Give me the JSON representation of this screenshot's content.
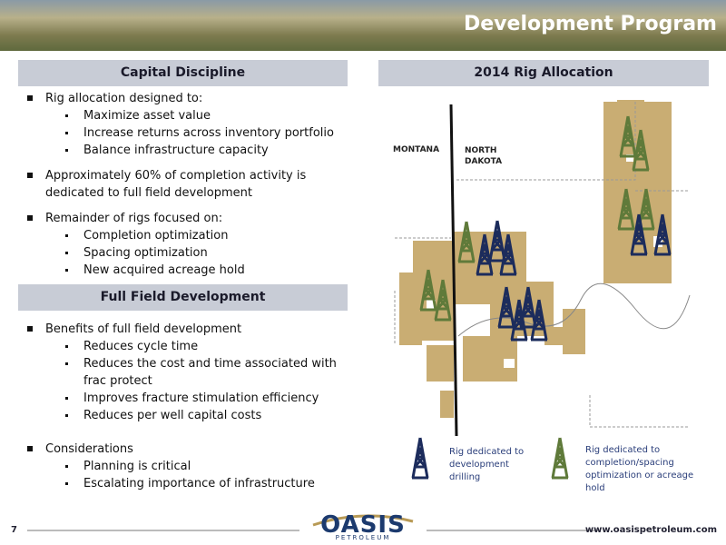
{
  "header": {
    "title": "Development Program"
  },
  "capital_discipline": {
    "heading": "Capital Discipline",
    "items": [
      {
        "text": "Rig allocation designed to:",
        "subitems": [
          "Maximize asset value",
          "Increase returns across inventory portfolio",
          "Balance infrastructure capacity"
        ]
      },
      {
        "text": "Approximately 60% of completion activity is dedicated to full field development",
        "subitems": []
      },
      {
        "text": "Remainder of rigs focused on:",
        "subitems": [
          "Completion optimization",
          "Spacing optimization",
          "New acquired acreage hold"
        ]
      }
    ]
  },
  "full_field_development": {
    "heading": "Full Field Development",
    "items": [
      {
        "text": "Benefits of full field development",
        "subitems": [
          "Reduces cycle time",
          "Reduces the cost and time associated with frac protect",
          "Improves fracture stimulation efficiency",
          "Reduces per well capital costs"
        ]
      },
      {
        "text": "Considerations",
        "subitems": [
          "Planning is critical",
          "Escalating importance of infrastructure"
        ]
      }
    ]
  },
  "rig_allocation": {
    "heading": "2014 Rig Allocation",
    "map_labels": [
      "MONTANA",
      "NORTH DAKOTA"
    ],
    "legend": [
      "Rig dedicated to development drilling",
      "Rig dedicated to completion/spacing optimization or acreage hold"
    ]
  },
  "footer": {
    "page": "7",
    "logo": "OASIS",
    "logo_sub": "PETROLEUM",
    "url": "www.oasispetroleum.com"
  }
}
